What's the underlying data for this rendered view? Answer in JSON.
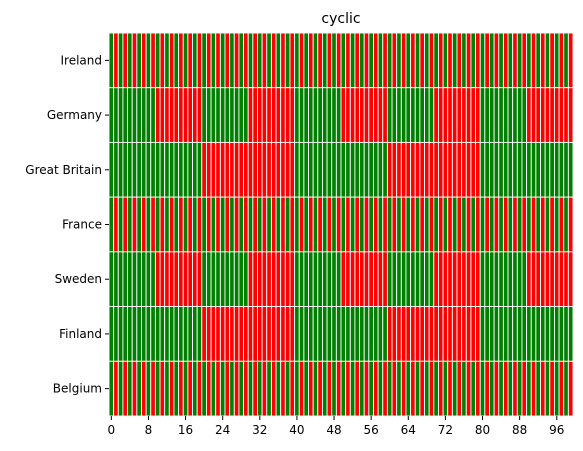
{
  "chart_data": {
    "type": "heatmap",
    "title": "cyclic",
    "xlabel": "",
    "ylabel": "",
    "x_range": [
      0,
      100
    ],
    "x_ticks": [
      "0",
      "8",
      "16",
      "24",
      "32",
      "40",
      "48",
      "56",
      "64",
      "72",
      "80",
      "88",
      "96"
    ],
    "categories": [
      "Ireland",
      "Germany",
      "Great Britain",
      "France",
      "Sweden",
      "Finland",
      "Belgium"
    ],
    "cell_colors": {
      "0": "#ff0000",
      "1": "#008000",
      "grid": "#ffffff"
    },
    "rows": [
      {
        "name": "Ireland",
        "period": 2,
        "offset": 0,
        "values": [
          1,
          0,
          1,
          0,
          1,
          0,
          1,
          0,
          1,
          0,
          1,
          0,
          1,
          0,
          1,
          0,
          1,
          0,
          1,
          0,
          1,
          0,
          1,
          0,
          1,
          0,
          1,
          0,
          1,
          0,
          1,
          0,
          1,
          0,
          1,
          0,
          1,
          0,
          1,
          0,
          1,
          0,
          1,
          0,
          1,
          0,
          1,
          0,
          1,
          0,
          1,
          0,
          1,
          0,
          1,
          0,
          1,
          0,
          1,
          0,
          1,
          0,
          1,
          0,
          1,
          0,
          1,
          0,
          1,
          0,
          1,
          0,
          1,
          0,
          1,
          0,
          1,
          0,
          1,
          0,
          1,
          0,
          1,
          0,
          1,
          0,
          1,
          0,
          1,
          0,
          1,
          0,
          1,
          0,
          1,
          0,
          1,
          0,
          1,
          0
        ]
      },
      {
        "name": "Germany",
        "period": 20,
        "offset": 0,
        "values": [
          1,
          1,
          1,
          1,
          1,
          1,
          1,
          1,
          1,
          1,
          0,
          0,
          0,
          0,
          0,
          0,
          0,
          0,
          0,
          0,
          1,
          1,
          1,
          1,
          1,
          1,
          1,
          1,
          1,
          1,
          0,
          0,
          0,
          0,
          0,
          0,
          0,
          0,
          0,
          0,
          1,
          1,
          1,
          1,
          1,
          1,
          1,
          1,
          1,
          1,
          0,
          0,
          0,
          0,
          0,
          0,
          0,
          0,
          0,
          0,
          1,
          1,
          1,
          1,
          1,
          1,
          1,
          1,
          1,
          1,
          0,
          0,
          0,
          0,
          0,
          0,
          0,
          0,
          0,
          0,
          1,
          1,
          1,
          1,
          1,
          1,
          1,
          1,
          1,
          1,
          0,
          0,
          0,
          0,
          0,
          0,
          0,
          0,
          0,
          0
        ]
      },
      {
        "name": "Great Britain",
        "period": 40,
        "offset": 0,
        "values": [
          1,
          1,
          1,
          1,
          1,
          1,
          1,
          1,
          1,
          1,
          1,
          1,
          1,
          1,
          1,
          1,
          1,
          1,
          1,
          1,
          0,
          0,
          0,
          0,
          0,
          0,
          0,
          0,
          0,
          0,
          0,
          0,
          0,
          0,
          0,
          0,
          0,
          0,
          0,
          0,
          1,
          1,
          1,
          1,
          1,
          1,
          1,
          1,
          1,
          1,
          1,
          1,
          1,
          1,
          1,
          1,
          1,
          1,
          1,
          1,
          0,
          0,
          0,
          0,
          0,
          0,
          0,
          0,
          0,
          0,
          0,
          0,
          0,
          0,
          0,
          0,
          0,
          0,
          0,
          0,
          1,
          1,
          1,
          1,
          1,
          1,
          1,
          1,
          1,
          1,
          1,
          1,
          1,
          1,
          1,
          1,
          1,
          1,
          1,
          1
        ]
      },
      {
        "name": "France",
        "period": 2,
        "offset": 0,
        "values": [
          1,
          0,
          1,
          0,
          1,
          0,
          1,
          0,
          1,
          0,
          1,
          0,
          1,
          0,
          1,
          0,
          1,
          0,
          1,
          0,
          1,
          0,
          1,
          0,
          1,
          0,
          1,
          0,
          1,
          0,
          1,
          0,
          1,
          0,
          1,
          0,
          1,
          0,
          1,
          0,
          1,
          0,
          1,
          0,
          1,
          0,
          1,
          0,
          1,
          0,
          1,
          0,
          1,
          0,
          1,
          0,
          1,
          0,
          1,
          0,
          1,
          0,
          1,
          0,
          1,
          0,
          1,
          0,
          1,
          0,
          1,
          0,
          1,
          0,
          1,
          0,
          1,
          0,
          1,
          0,
          1,
          0,
          1,
          0,
          1,
          0,
          1,
          0,
          1,
          0,
          1,
          0,
          1,
          0,
          1,
          0,
          1,
          0,
          1,
          0
        ]
      },
      {
        "name": "Sweden",
        "period": 20,
        "offset": 0,
        "values": [
          1,
          1,
          1,
          1,
          1,
          1,
          1,
          1,
          1,
          1,
          0,
          0,
          0,
          0,
          0,
          0,
          0,
          0,
          0,
          0,
          1,
          1,
          1,
          1,
          1,
          1,
          1,
          1,
          1,
          1,
          0,
          0,
          0,
          0,
          0,
          0,
          0,
          0,
          0,
          0,
          1,
          1,
          1,
          1,
          1,
          1,
          1,
          1,
          1,
          1,
          0,
          0,
          0,
          0,
          0,
          0,
          0,
          0,
          0,
          0,
          1,
          1,
          1,
          1,
          1,
          1,
          1,
          1,
          1,
          1,
          0,
          0,
          0,
          0,
          0,
          0,
          0,
          0,
          0,
          0,
          1,
          1,
          1,
          1,
          1,
          1,
          1,
          1,
          1,
          1,
          0,
          0,
          0,
          0,
          0,
          0,
          0,
          0,
          0,
          0
        ]
      },
      {
        "name": "Finland",
        "period": 40,
        "offset": 0,
        "values": [
          1,
          1,
          1,
          1,
          1,
          1,
          1,
          1,
          1,
          1,
          1,
          1,
          1,
          1,
          1,
          1,
          1,
          1,
          1,
          1,
          0,
          0,
          0,
          0,
          0,
          0,
          0,
          0,
          0,
          0,
          0,
          0,
          0,
          0,
          0,
          0,
          0,
          0,
          0,
          0,
          1,
          1,
          1,
          1,
          1,
          1,
          1,
          1,
          1,
          1,
          1,
          1,
          1,
          1,
          1,
          1,
          1,
          1,
          1,
          1,
          0,
          0,
          0,
          0,
          0,
          0,
          0,
          0,
          0,
          0,
          0,
          0,
          0,
          0,
          0,
          0,
          0,
          0,
          0,
          0,
          1,
          1,
          1,
          1,
          1,
          1,
          1,
          1,
          1,
          1,
          1,
          1,
          1,
          1,
          1,
          1,
          1,
          1,
          1,
          1
        ]
      },
      {
        "name": "Belgium",
        "period": 2,
        "offset": 0,
        "values": [
          1,
          0,
          1,
          0,
          1,
          0,
          1,
          0,
          1,
          0,
          1,
          0,
          1,
          0,
          1,
          0,
          1,
          0,
          1,
          0,
          1,
          0,
          1,
          0,
          1,
          0,
          1,
          0,
          1,
          0,
          1,
          0,
          1,
          0,
          1,
          0,
          1,
          0,
          1,
          0,
          1,
          0,
          1,
          0,
          1,
          0,
          1,
          0,
          1,
          0,
          1,
          0,
          1,
          0,
          1,
          0,
          1,
          0,
          1,
          0,
          1,
          0,
          1,
          0,
          1,
          0,
          1,
          0,
          1,
          0,
          1,
          0,
          1,
          0,
          1,
          0,
          1,
          0,
          1,
          0,
          1,
          0,
          1,
          0,
          1,
          0,
          1,
          0,
          1,
          0,
          1,
          0,
          1,
          0,
          1,
          0,
          1,
          0,
          1,
          0
        ]
      }
    ],
    "grid": false,
    "legend": "none"
  }
}
